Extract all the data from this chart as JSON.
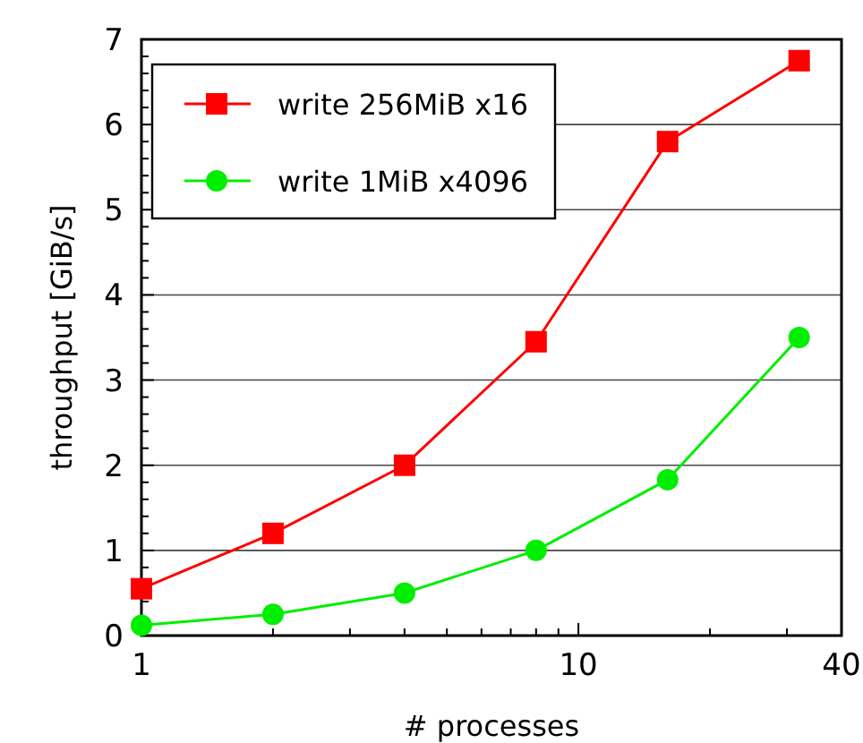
{
  "chart_data": {
    "type": "line",
    "xlabel": "# processes",
    "ylabel": "throughput [GiB/s]",
    "x": [
      1,
      2,
      4,
      8,
      16,
      32
    ],
    "series": [
      {
        "name": "write 256MiB x16",
        "color": "#ff0000",
        "marker": "square",
        "values": [
          0.55,
          1.2,
          2.0,
          3.45,
          5.8,
          6.75
        ]
      },
      {
        "name": "write 1MiB x4096",
        "color": "#00ee00",
        "marker": "circle",
        "values": [
          0.12,
          0.25,
          0.5,
          1.0,
          1.83,
          3.5
        ]
      }
    ],
    "log": "x",
    "xlim": [
      1,
      40
    ],
    "xticks": [
      1,
      {
        "value": 2,
        "label": null
      },
      {
        "value": 3,
        "label": null
      },
      {
        "value": 4,
        "label": null
      },
      {
        "value": 5,
        "label": null
      },
      {
        "value": 6,
        "label": null
      },
      {
        "value": 7,
        "label": null
      },
      {
        "value": 8,
        "label": null
      },
      {
        "value": 9,
        "label": null
      },
      10,
      {
        "value": 20,
        "label": null
      },
      {
        "value": 30,
        "label": null
      },
      40
    ],
    "ylim": [
      0,
      7
    ],
    "yticks": [
      0,
      1,
      2,
      3,
      4,
      5,
      6,
      7
    ],
    "grid": "y",
    "legend": "top left"
  }
}
